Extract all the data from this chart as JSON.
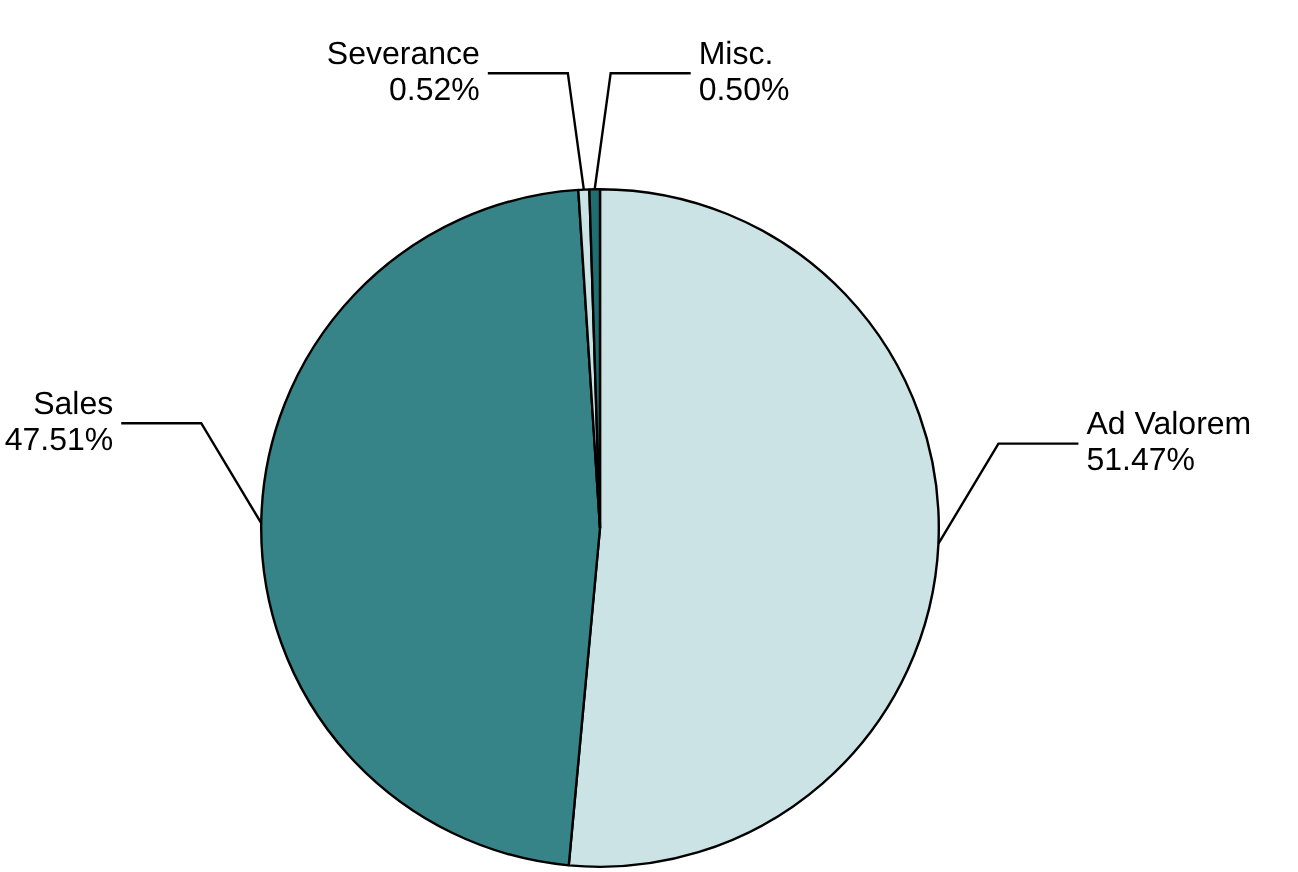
{
  "chart_data": {
    "type": "pie",
    "categories": [
      "Ad Valorem",
      "Sales",
      "Severance",
      "Misc."
    ],
    "values": [
      51.47,
      47.51,
      0.52,
      0.5
    ],
    "colors": [
      "#cce3e5",
      "#368487",
      "#cce3e5",
      "#1f6e70"
    ],
    "value_labels": [
      "51.47%",
      "47.51%",
      "0.52%",
      "0.50%"
    ],
    "legend": false
  }
}
